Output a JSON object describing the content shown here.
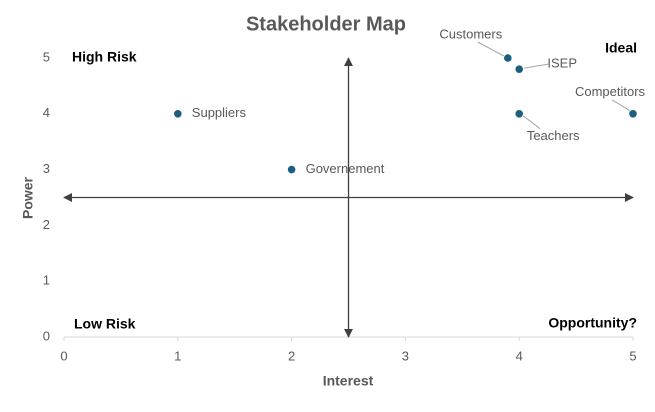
{
  "chart_data": {
    "type": "scatter",
    "title": "Stakeholder Map",
    "x_label": "Interest",
    "y_label": "Power",
    "series": [
      {
        "color": "#1b5e7e",
        "x": [
          1,
          2,
          3.9,
          4,
          4,
          5
        ],
        "values": [
          4,
          3,
          5,
          4.8,
          4,
          4
        ],
        "point_labels": [
          "Suppliers",
          "Governement",
          "Customers",
          "ISEP",
          "Teachers",
          "Competitors"
        ]
      }
    ],
    "quadrant_labels": {
      "top_left": "High Risk",
      "top_right": "Ideal",
      "bottom_left": "Low Risk",
      "bottom_right": "Opportunity?"
    },
    "xlim": [
      0,
      5
    ],
    "xticks": [
      0,
      1,
      2,
      3,
      4,
      5
    ],
    "ylim": [
      0,
      5
    ],
    "yticks": [
      0,
      1,
      2,
      3,
      4,
      5
    ],
    "grid": false
  }
}
